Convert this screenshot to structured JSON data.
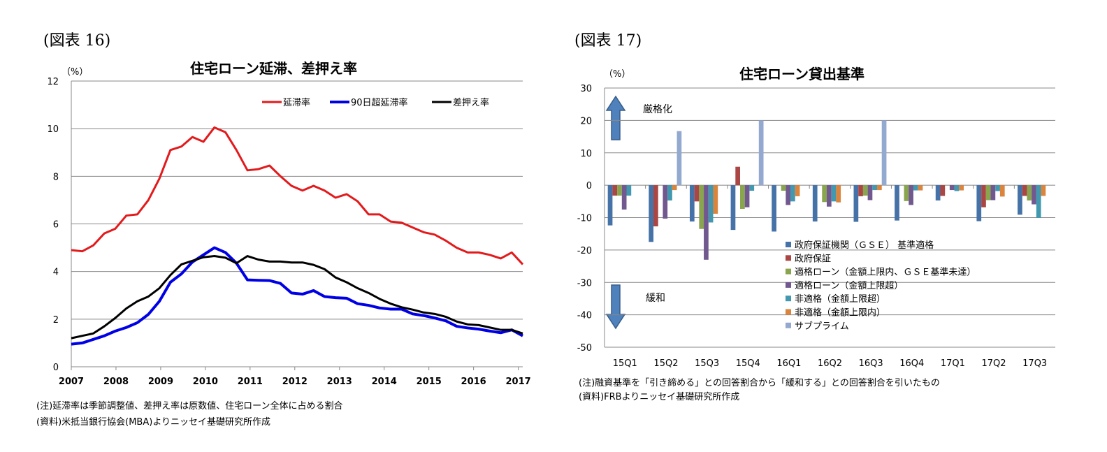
{
  "chart_data": [
    {
      "type": "line",
      "figure_label": "(図表 16)",
      "title": "住宅ローン延滞、差押え率",
      "ylabel": "（%）",
      "ylim": [
        0,
        12
      ],
      "yticks": [
        0,
        2,
        4,
        6,
        8,
        10,
        12
      ],
      "xlim": [
        2007,
        2017.1
      ],
      "xticks": [
        "2007",
        "2008",
        "2009",
        "2010",
        "2011",
        "2012",
        "2013",
        "2014",
        "2015",
        "2016",
        "2017"
      ],
      "grid": true,
      "legend_position": "top-right",
      "x_start": 2007,
      "x_end": 2017.1,
      "series": [
        {
          "name": "延滞率",
          "color": "#e31a1c",
          "values": [
            4.9,
            4.85,
            5.1,
            5.6,
            5.8,
            6.35,
            6.4,
            7.0,
            7.9,
            9.1,
            9.25,
            9.65,
            9.45,
            10.05,
            9.85,
            9.1,
            8.25,
            8.3,
            8.45,
            8.0,
            7.6,
            7.4,
            7.6,
            7.4,
            7.1,
            7.25,
            6.95,
            6.4,
            6.4,
            6.1,
            6.05,
            5.85,
            5.65,
            5.55,
            5.3,
            5.0,
            4.8,
            4.8,
            4.7,
            4.55,
            4.8,
            4.3
          ]
        },
        {
          "name": "90日超延滞率",
          "color": "#0000e6",
          "values": [
            0.95,
            1.0,
            1.15,
            1.3,
            1.5,
            1.65,
            1.85,
            2.2,
            2.75,
            3.55,
            3.9,
            4.4,
            4.7,
            5.0,
            4.8,
            4.35,
            3.65,
            3.63,
            3.62,
            3.5,
            3.1,
            3.05,
            3.2,
            2.95,
            2.9,
            2.88,
            2.65,
            2.58,
            2.47,
            2.42,
            2.42,
            2.22,
            2.15,
            2.05,
            1.93,
            1.7,
            1.63,
            1.58,
            1.5,
            1.43,
            1.55,
            1.3
          ]
        },
        {
          "name": "差押え率",
          "color": "#000000",
          "values": [
            1.2,
            1.3,
            1.4,
            1.7,
            2.05,
            2.45,
            2.75,
            2.95,
            3.3,
            3.85,
            4.3,
            4.45,
            4.6,
            4.65,
            4.58,
            4.35,
            4.65,
            4.5,
            4.42,
            4.42,
            4.38,
            4.38,
            4.28,
            4.1,
            3.75,
            3.55,
            3.3,
            3.1,
            2.85,
            2.65,
            2.5,
            2.4,
            2.28,
            2.22,
            2.1,
            1.9,
            1.78,
            1.75,
            1.65,
            1.55,
            1.55,
            1.4
          ]
        }
      ],
      "notes": [
        "(注)延滞率は季節調整値、差押え率は原数値、住宅ローン全体に占める割合",
        "(資料)米抵当銀行協会(MBA)よりニッセイ基礎研究所作成"
      ]
    },
    {
      "type": "bar",
      "figure_label": "(図表 17)",
      "title": "住宅ローン貸出基準",
      "ylabel": "（%）",
      "ylim": [
        -50,
        30
      ],
      "yticks": [
        -50,
        -40,
        -30,
        -20,
        -10,
        0,
        10,
        20,
        30
      ],
      "grid": true,
      "legend_position": "bottom-center",
      "categories": [
        "15Q1",
        "15Q2",
        "15Q3",
        "15Q4",
        "16Q1",
        "16Q2",
        "16Q3",
        "16Q4",
        "17Q1",
        "17Q2",
        "17Q3"
      ],
      "annotations": {
        "up": "厳格化",
        "down": "緩和"
      },
      "series": [
        {
          "name": "政府保証機関（ＧＳＥ） 基準適格",
          "color": "#4572a7",
          "values": [
            -12.4,
            -17.5,
            -11.2,
            -13.8,
            -14.3,
            -11.2,
            -11.3,
            -10.9,
            -4.7,
            -11.1,
            -9.1
          ]
        },
        {
          "name": "政府保証",
          "color": "#aa4643",
          "values": [
            -3.2,
            -12.7,
            -5.0,
            5.7,
            0,
            0,
            -3.4,
            0,
            -3.3,
            -6.8,
            -3.3
          ]
        },
        {
          "name": "適格ローン（金額上限内、ＧＳＥ基準未達）",
          "color": "#89a54e",
          "values": [
            -3.2,
            0,
            -13.5,
            -7.3,
            -1.7,
            -5.2,
            -3.2,
            -4.9,
            0,
            -4.6,
            -4.7
          ]
        },
        {
          "name": "適格ローン（金額上限超）",
          "color": "#71588f",
          "values": [
            -7.5,
            -10.3,
            -23.0,
            -6.8,
            -6.1,
            -6.6,
            -4.6,
            -6.1,
            -1.5,
            -4.6,
            -5.9
          ]
        },
        {
          "name": "非適格（金額上限超）",
          "color": "#4198af",
          "values": [
            -3.2,
            -4.7,
            -11.5,
            -1.7,
            -5.0,
            -5.0,
            -1.5,
            -1.6,
            -1.8,
            -1.8,
            -10.1
          ]
        },
        {
          "name": "非適格（金額上限内）",
          "color": "#db843d",
          "values": [
            0,
            -1.5,
            -8.8,
            0,
            -3.4,
            -5.3,
            -1.5,
            -1.6,
            -1.6,
            -3.5,
            -3.3
          ]
        },
        {
          "name": "サブプライム",
          "color": "#93a9cf",
          "values": [
            0,
            16.7,
            0,
            20,
            0,
            0,
            20,
            0,
            0,
            0,
            0
          ]
        }
      ],
      "notes": [
        "(注)融資基準を「引き締める」との回答割合から「緩和する」との回答割合を引いたもの",
        "(資料)FRBよりニッセイ基礎研究所作成"
      ]
    }
  ]
}
